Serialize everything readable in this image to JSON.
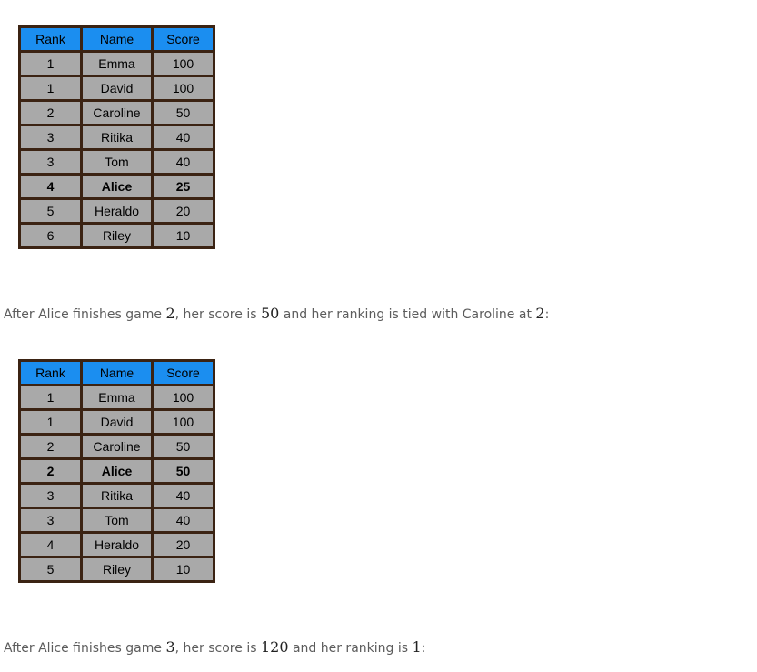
{
  "headers": {
    "rank": "Rank",
    "name": "Name",
    "score": "Score"
  },
  "colors": {
    "header_bg": "#1b8ef0",
    "cell_bg": "#a9a9a9",
    "border": "#3b2313",
    "text_muted": "#5c5c5c"
  },
  "table1": {
    "rows": [
      {
        "rank": "1",
        "name": "Emma",
        "score": "100"
      },
      {
        "rank": "1",
        "name": "David",
        "score": "100"
      },
      {
        "rank": "2",
        "name": "Caroline",
        "score": "50"
      },
      {
        "rank": "3",
        "name": "Ritika",
        "score": "40"
      },
      {
        "rank": "3",
        "name": "Tom",
        "score": "40"
      },
      {
        "rank": "4",
        "name": "Alice",
        "score": "25"
      },
      {
        "rank": "5",
        "name": "Heraldo",
        "score": "20"
      },
      {
        "rank": "6",
        "name": "Riley",
        "score": "10"
      }
    ]
  },
  "para1": {
    "t1": "After Alice finishes game ",
    "game": "2",
    "t2": ", her score is ",
    "score": "50",
    "t3": " and her ranking is tied with Caroline at ",
    "rank": "2",
    "t4": ":"
  },
  "table2": {
    "rows": [
      {
        "rank": "1",
        "name": "Emma",
        "score": "100"
      },
      {
        "rank": "1",
        "name": "David",
        "score": "100"
      },
      {
        "rank": "2",
        "name": "Caroline",
        "score": "50"
      },
      {
        "rank": "2",
        "name": "Alice",
        "score": "50"
      },
      {
        "rank": "3",
        "name": "Ritika",
        "score": "40"
      },
      {
        "rank": "3",
        "name": "Tom",
        "score": "40"
      },
      {
        "rank": "4",
        "name": "Heraldo",
        "score": "20"
      },
      {
        "rank": "5",
        "name": "Riley",
        "score": "10"
      }
    ]
  },
  "para2": {
    "t1": "After Alice finishes game ",
    "game": "3",
    "t2": ", her score is ",
    "score": "120",
    "t3": " and her ranking is ",
    "rank": "1",
    "t4": ":"
  }
}
